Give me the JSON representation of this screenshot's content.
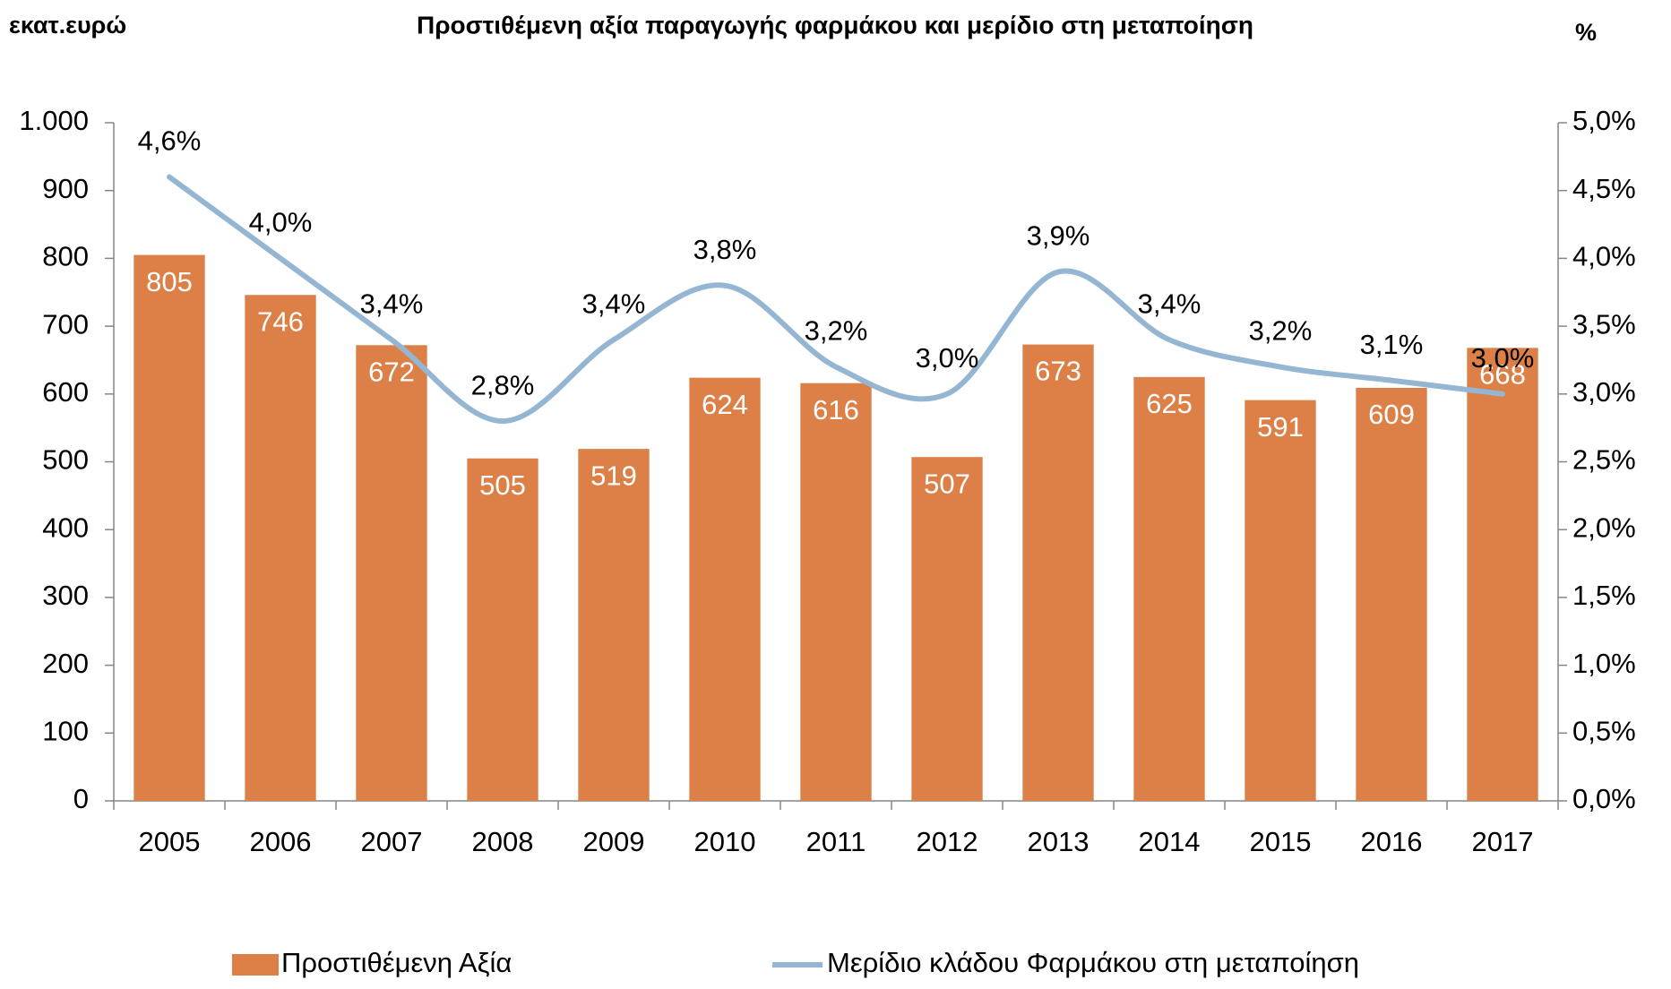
{
  "chart_data": {
    "type": "bar-line",
    "title": "Προστιθέμενη αξία παραγωγής φαρμάκου και μερίδιο στη μεταποίηση",
    "y_label": "εκατ.ευρώ",
    "y2_label": "%",
    "categories": [
      "2005",
      "2006",
      "2007",
      "2008",
      "2009",
      "2010",
      "2011",
      "2012",
      "2013",
      "2014",
      "2015",
      "2016",
      "2017"
    ],
    "series": [
      {
        "name": "Προστιθέμενη Αξία",
        "type": "bar",
        "color": "#dd8047",
        "values": [
          805,
          746,
          672,
          505,
          519,
          624,
          616,
          507,
          673,
          625,
          591,
          609,
          668
        ]
      },
      {
        "name": "Μερίδιο κλάδου Φαρμάκου στη μεταποίηση",
        "type": "line",
        "axis": "y2",
        "color": "#94b6d2",
        "values": [
          4.6,
          4.0,
          3.4,
          2.8,
          3.4,
          3.8,
          3.2,
          3.0,
          3.9,
          3.4,
          3.2,
          3.1,
          3.0
        ],
        "value_labels": [
          "4,6%",
          "4,0%",
          "3,4%",
          "2,8%",
          "3,4%",
          "3,8%",
          "3,2%",
          "3,0%",
          "3,9%",
          "3,4%",
          "3,2%",
          "3,1%",
          "3,0%"
        ]
      }
    ],
    "ylim": [
      0,
      1000
    ],
    "yticks": [
      0,
      100,
      200,
      300,
      400,
      500,
      600,
      700,
      800,
      900,
      {
        "value": 1000,
        "label": "1.000"
      }
    ],
    "y2lim": [
      0,
      5
    ],
    "y2ticks": [
      {
        "value": 0,
        "label": "0,0%"
      },
      {
        "value": 0.5,
        "label": "0,5%"
      },
      {
        "value": 1,
        "label": "1,0%"
      },
      {
        "value": 1.5,
        "label": "1,5%"
      },
      {
        "value": 2,
        "label": "2,0%"
      },
      {
        "value": 2.5,
        "label": "2,5%"
      },
      {
        "value": 3,
        "label": "3,0%"
      },
      {
        "value": 3.5,
        "label": "3,5%"
      },
      {
        "value": 4,
        "label": "4,0%"
      },
      {
        "value": 4.5,
        "label": "4,5%"
      },
      {
        "value": 5,
        "label": "5,0%"
      }
    ],
    "legend": "bottom"
  }
}
